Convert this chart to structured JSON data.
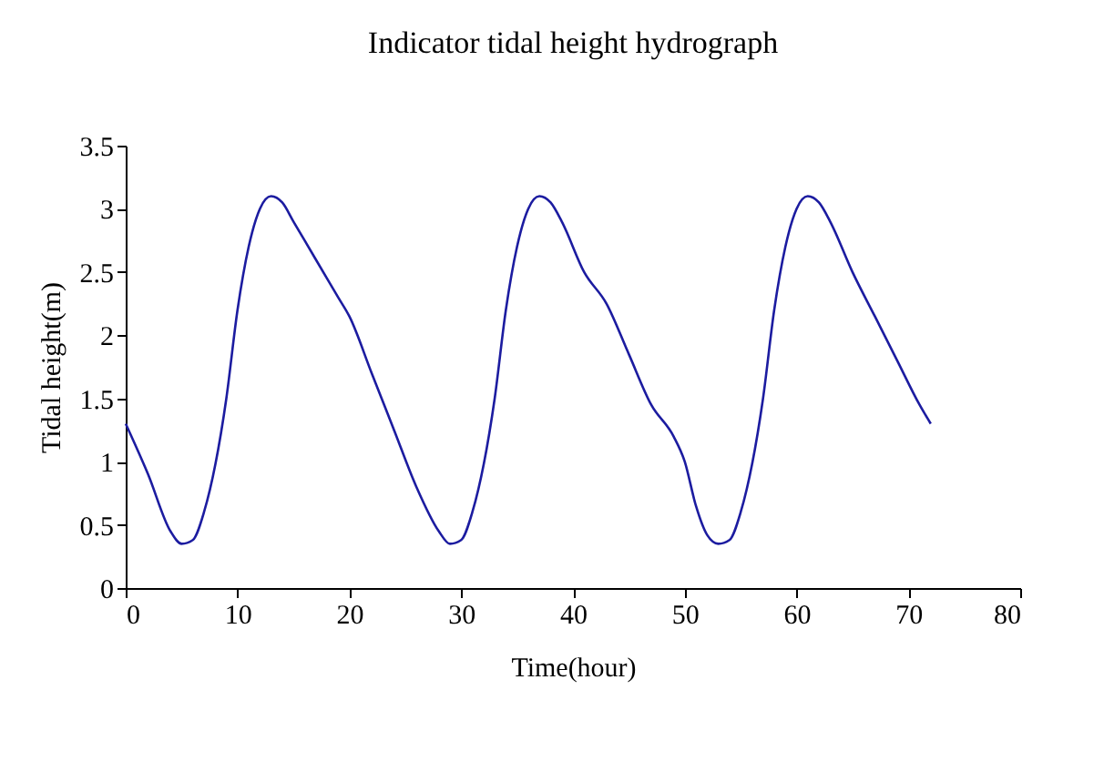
{
  "chart_data": {
    "type": "line",
    "title": "Indicator tidal height hydrograph",
    "xlabel": "Time(hour)",
    "ylabel": "Tidal height(m)",
    "xlim": [
      0,
      80
    ],
    "xticks": [
      0,
      10,
      20,
      30,
      40,
      50,
      60,
      70,
      80
    ],
    "ylim": [
      0,
      3.5
    ],
    "yticks": [
      0,
      0.5,
      1,
      1.5,
      2,
      2.5,
      3,
      3.5
    ],
    "grid": false,
    "legend": false,
    "marker": "none",
    "line_style": "solid",
    "series": [
      {
        "color": "#1c1ca0",
        "x": [
          0,
          2,
          4,
          5,
          6,
          7,
          9,
          10,
          11,
          12,
          13,
          14,
          15,
          17,
          19,
          20,
          22,
          24,
          26,
          28,
          29,
          30,
          31,
          33,
          34,
          35,
          36,
          37,
          38,
          39,
          41,
          43,
          45,
          47,
          49,
          50,
          51,
          52,
          53,
          54,
          55,
          57,
          58,
          59,
          60,
          61,
          62,
          63,
          65,
          67,
          69,
          71,
          72
        ],
        "values": [
          1.3,
          0.9,
          0.45,
          0.35,
          0.38,
          0.6,
          1.5,
          2.2,
          2.7,
          3.0,
          3.1,
          3.05,
          2.9,
          2.6,
          2.3,
          2.15,
          1.7,
          1.25,
          0.8,
          0.45,
          0.35,
          0.38,
          0.6,
          1.5,
          2.2,
          2.7,
          3.0,
          3.1,
          3.05,
          2.9,
          2.5,
          2.25,
          1.85,
          1.45,
          1.2,
          1.0,
          0.65,
          0.42,
          0.35,
          0.38,
          0.6,
          1.5,
          2.2,
          2.7,
          3.0,
          3.1,
          3.05,
          2.9,
          2.5,
          2.15,
          1.8,
          1.45,
          1.3
        ]
      }
    ]
  }
}
